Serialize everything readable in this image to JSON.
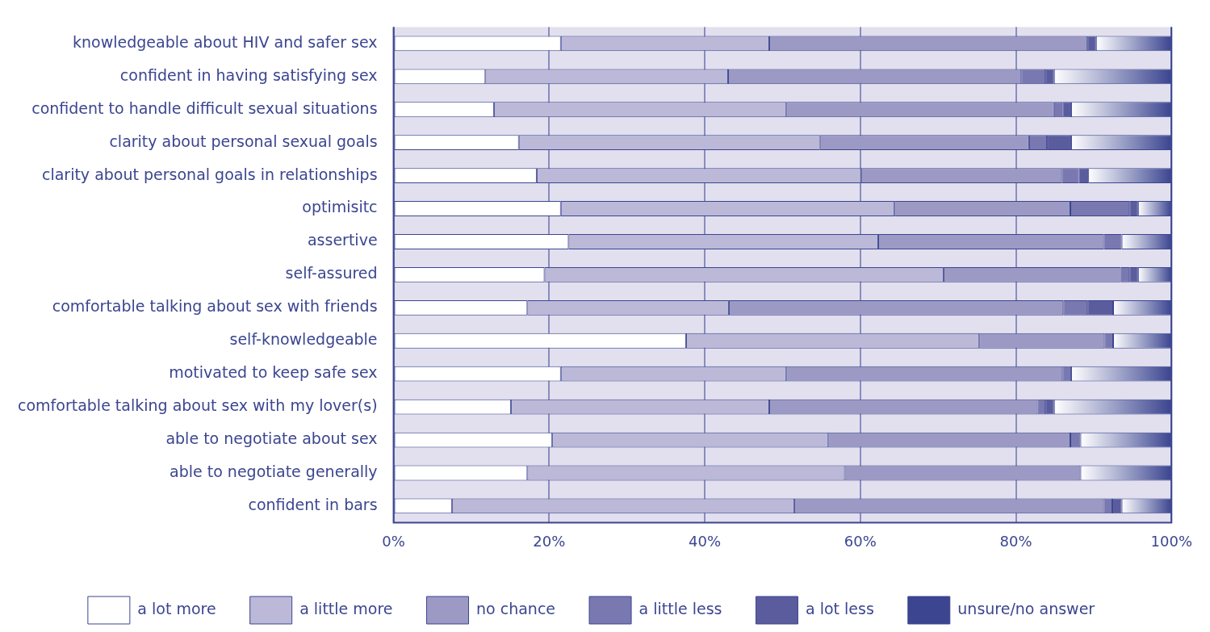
{
  "chart_data": {
    "type": "bar",
    "orientation": "horizontal",
    "stacked": true,
    "categories": [
      "knowledgeable about HIV and safer sex",
      "confident in having satisfying sex",
      "confident to handle difficult sexual situations",
      "clarity about personal sexual goals",
      "clarity about personal goals in relationships",
      "optimisitc",
      "assertive",
      "self-assured",
      "comfortable talking about sex with friends",
      "self-knowledgeable",
      "motivated to keep safe sex",
      "comfortable talking about sex with my lover(s)",
      "able to negotiate about sex",
      "able to negotiate generally",
      "confident in bars"
    ],
    "series": [
      {
        "name": "a lot more",
        "color": "#ffffff",
        "values": [
          21.5,
          11.8,
          12.9,
          16.1,
          18.4,
          21.5,
          22.5,
          19.4,
          17.2,
          37.6,
          21.5,
          15.1,
          20.4,
          17.2,
          7.5
        ]
      },
      {
        "name": "a little more",
        "color": "#bcb9d8",
        "values": [
          26.8,
          31.2,
          37.6,
          38.7,
          41.7,
          42.9,
          39.8,
          51.3,
          25.9,
          37.7,
          29.0,
          33.2,
          35.5,
          40.8,
          44.0
        ]
      },
      {
        "name": "no chance",
        "color": "#9c9ac4",
        "values": [
          40.9,
          37.7,
          34.4,
          26.9,
          25.8,
          22.6,
          29.0,
          22.8,
          43.0,
          16.1,
          35.5,
          34.5,
          31.1,
          30.3,
          39.8
        ]
      },
      {
        "name": "a little less",
        "color": "#7a78b0",
        "values": [
          0,
          3.1,
          1.1,
          2.3,
          2.2,
          7.6,
          2.3,
          1.1,
          3.1,
          1.1,
          1.1,
          1.0,
          1.3,
          0,
          1.1
        ]
      },
      {
        "name": "a lot less",
        "color": "#5a5c9e",
        "values": [
          1.1,
          1.1,
          1.1,
          3.1,
          1.2,
          1.1,
          0,
          1.1,
          3.3,
          0,
          0,
          1.1,
          0,
          0,
          1.2
        ]
      },
      {
        "name": "unsure/no answer",
        "color": "#3b4590",
        "values": [
          9.7,
          15.1,
          12.9,
          12.9,
          10.7,
          4.3,
          6.4,
          4.3,
          7.5,
          7.5,
          12.9,
          15.1,
          11.7,
          11.7,
          6.4
        ]
      }
    ],
    "xlim": [
      0,
      100
    ],
    "xticks": [
      {
        "value": 0,
        "label": "0%"
      },
      {
        "value": 20,
        "label": "20%"
      },
      {
        "value": 40,
        "label": "40%"
      },
      {
        "value": 60,
        "label": "60%"
      },
      {
        "value": 80,
        "label": "80%"
      },
      {
        "value": 100,
        "label": "100%"
      }
    ],
    "grid": "x",
    "legend": "bottom"
  }
}
